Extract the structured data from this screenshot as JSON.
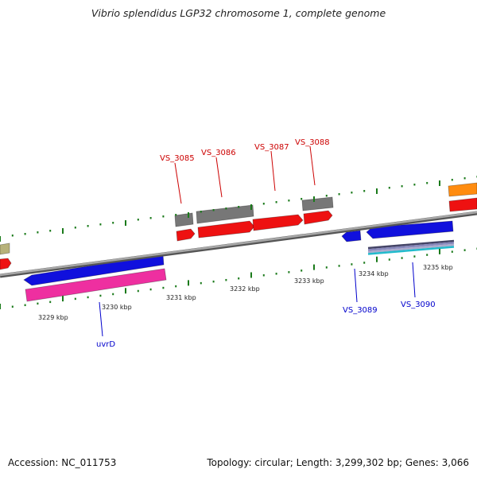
{
  "title": "Vibrio splendidus LGP32 chromosome 1, complete genome",
  "footer": {
    "accession": "Accession: NC_011753",
    "topology": "Topology: circular; Length: 3,299,302 bp; Genes: 3,066"
  },
  "colors": {
    "backbone": "#8a8a8a",
    "tick": "#1a7a1a",
    "label_top": "#cc0000",
    "label_bottom": "#0000cc",
    "tick_label": "#222222"
  },
  "scale": {
    "unit": "kbp",
    "labels": [
      "3229 kbp",
      "3230 kbp",
      "3231 kbp",
      "3232 kbp",
      "3233 kbp",
      "3234 kbp",
      "3235 kbp"
    ]
  },
  "gene_labels": {
    "top": [
      "VS_3085",
      "VS_3086",
      "VS_3087",
      "VS_3088"
    ],
    "bottom": [
      "uvrD",
      "VS_3089",
      "VS_3090"
    ]
  },
  "features": [
    {
      "name": "left-olive-gene",
      "color": "#b7b27a"
    },
    {
      "name": "left-red-gene",
      "color": "#ee1111"
    },
    {
      "name": "uvrD-blue-gene",
      "color": "#1010dd"
    },
    {
      "name": "uvrD-pink-gene",
      "color": "#ee2fa0"
    },
    {
      "name": "VS_3085-gray-gene",
      "color": "#777777"
    },
    {
      "name": "VS_3085-red-gene",
      "color": "#ee1111"
    },
    {
      "name": "VS_3086-gray-gene",
      "color": "#777777"
    },
    {
      "name": "VS_3086-red-gene",
      "color": "#ee1111"
    },
    {
      "name": "VS_3087-red-gene",
      "color": "#ee1111"
    },
    {
      "name": "VS_3088-gray-gene",
      "color": "#777777"
    },
    {
      "name": "VS_3088-red-gene",
      "color": "#ee1111"
    },
    {
      "name": "VS_3089-blue-gene",
      "color": "#1010dd"
    },
    {
      "name": "VS_3090-blue-gene",
      "color": "#1010dd"
    },
    {
      "name": "VS_3090-stripe-gene",
      "color": "#6666aa"
    },
    {
      "name": "right-orange-gene",
      "color": "#ff8c10"
    },
    {
      "name": "right-red-gene",
      "color": "#ee1111"
    }
  ]
}
